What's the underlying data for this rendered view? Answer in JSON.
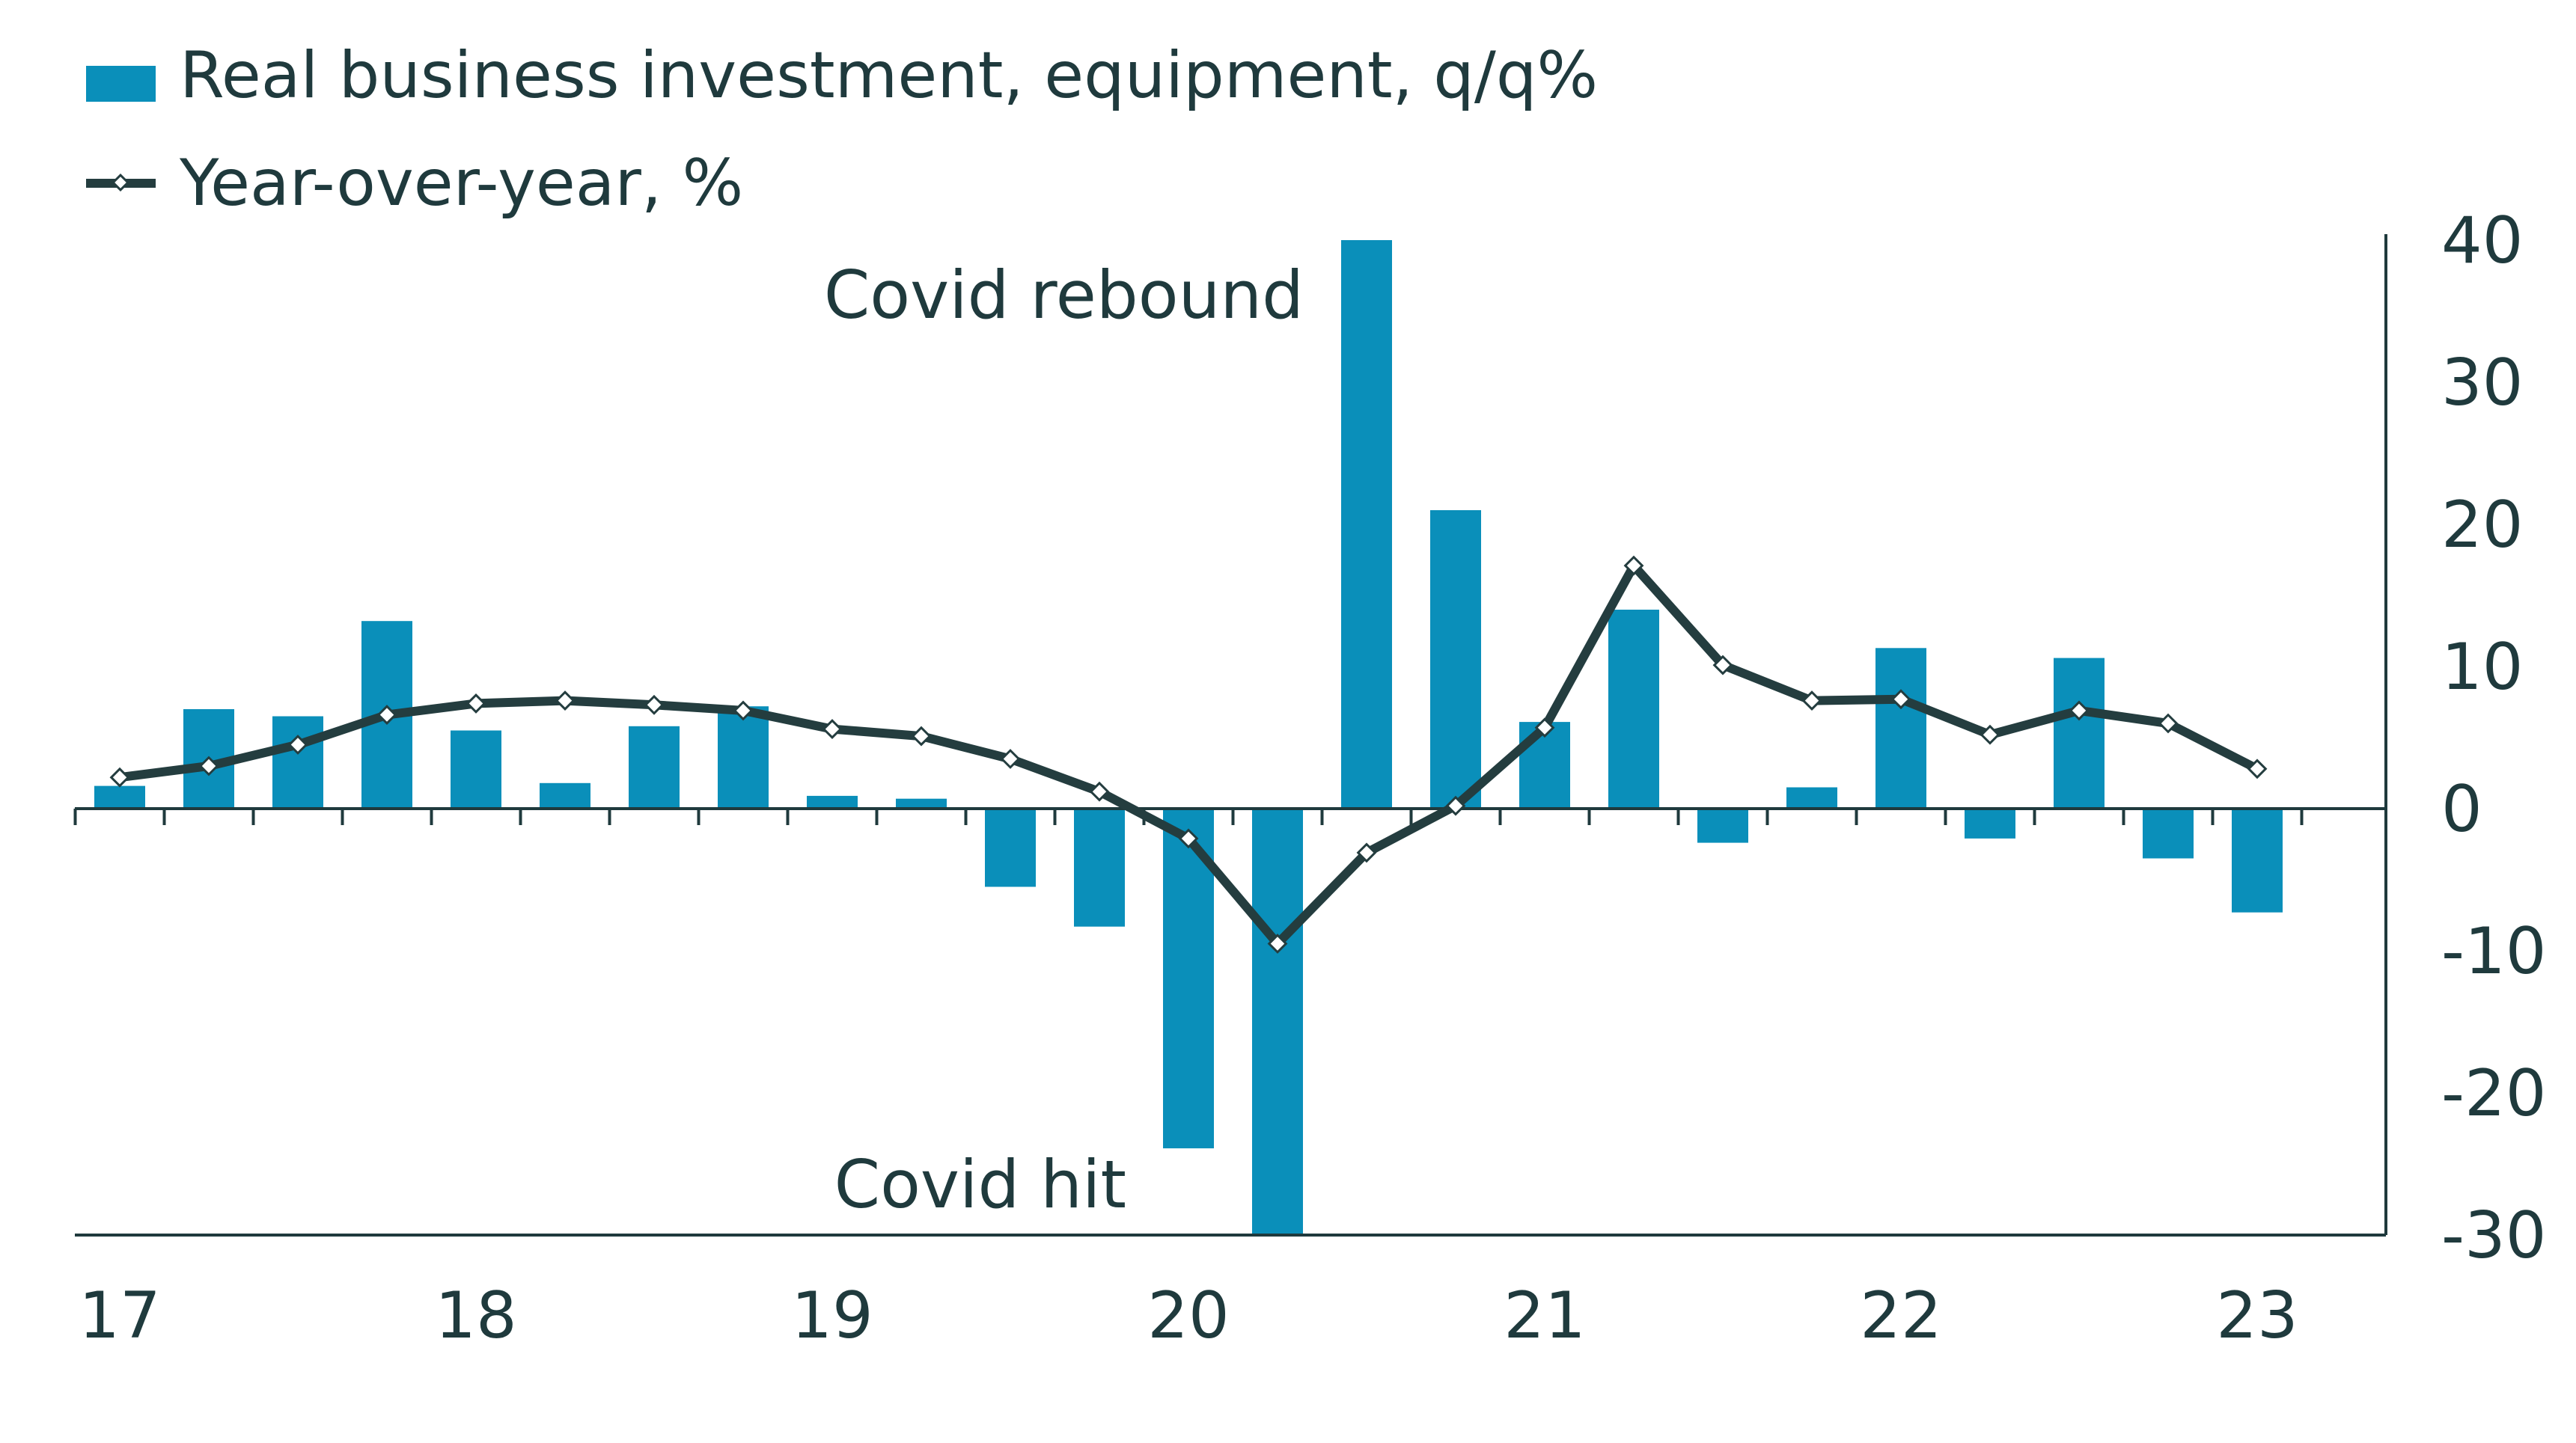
{
  "chart_data": {
    "type": "bar",
    "title": "",
    "xlabel": "",
    "ylabel": "",
    "ylim": [
      -30,
      40
    ],
    "y_ticks": [
      "40",
      "30",
      "20",
      "10",
      "0",
      "-10",
      "-20",
      "-30"
    ],
    "y_tick_values": [
      40,
      30,
      20,
      10,
      0,
      -10,
      -20,
      -30
    ],
    "x_tick_labels": [
      "17",
      "18",
      "19",
      "20",
      "21",
      "22",
      "23"
    ],
    "x_tick_years": [
      2017,
      2018,
      2019,
      2020,
      2021,
      2022,
      2023
    ],
    "grid": false,
    "legend_position": "top-left",
    "colors": {
      "bar": "#0a8fba",
      "line": "#243d3f",
      "axis": "#1f3a3d",
      "text": "#1f3a3d"
    },
    "quarters": [
      "2017-Q1",
      "2017-Q2",
      "2017-Q3",
      "2017-Q4",
      "2018-Q1",
      "2018-Q2",
      "2018-Q3",
      "2018-Q4",
      "2019-Q1",
      "2019-Q2",
      "2019-Q3",
      "2019-Q4",
      "2020-Q1",
      "2020-Q2",
      "2020-Q3",
      "2020-Q4",
      "2021-Q1",
      "2021-Q2",
      "2021-Q3",
      "2021-Q4",
      "2022-Q1",
      "2022-Q2",
      "2022-Q3",
      "2022-Q4",
      "2023-Q1"
    ],
    "series": [
      {
        "name": "Real business investment, equipment, q/q%",
        "type": "bar",
        "values": [
          1.6,
          7.0,
          6.5,
          13.2,
          5.5,
          1.8,
          5.8,
          7.2,
          0.9,
          0.7,
          -5.5,
          -8.3,
          -23.9,
          -30.0,
          40.0,
          21.0,
          6.1,
          14.0,
          -2.4,
          1.5,
          11.3,
          -2.1,
          10.6,
          -3.5,
          -7.3
        ]
      },
      {
        "name": "Year-over-year, %",
        "type": "line",
        "values": [
          2.2,
          3.0,
          4.5,
          6.6,
          7.4,
          7.6,
          7.3,
          6.9,
          5.6,
          5.1,
          3.5,
          1.2,
          -2.1,
          -9.5,
          -3.1,
          0.2,
          5.7,
          17.1,
          10.1,
          7.6,
          7.7,
          5.2,
          6.9,
          6.0,
          2.8
        ]
      }
    ],
    "annotations": [
      {
        "text": "Covid rebound",
        "anchor_quarter": "2020-Q3"
      },
      {
        "text": "Covid hit",
        "anchor_quarter": "2020-Q2"
      }
    ]
  }
}
